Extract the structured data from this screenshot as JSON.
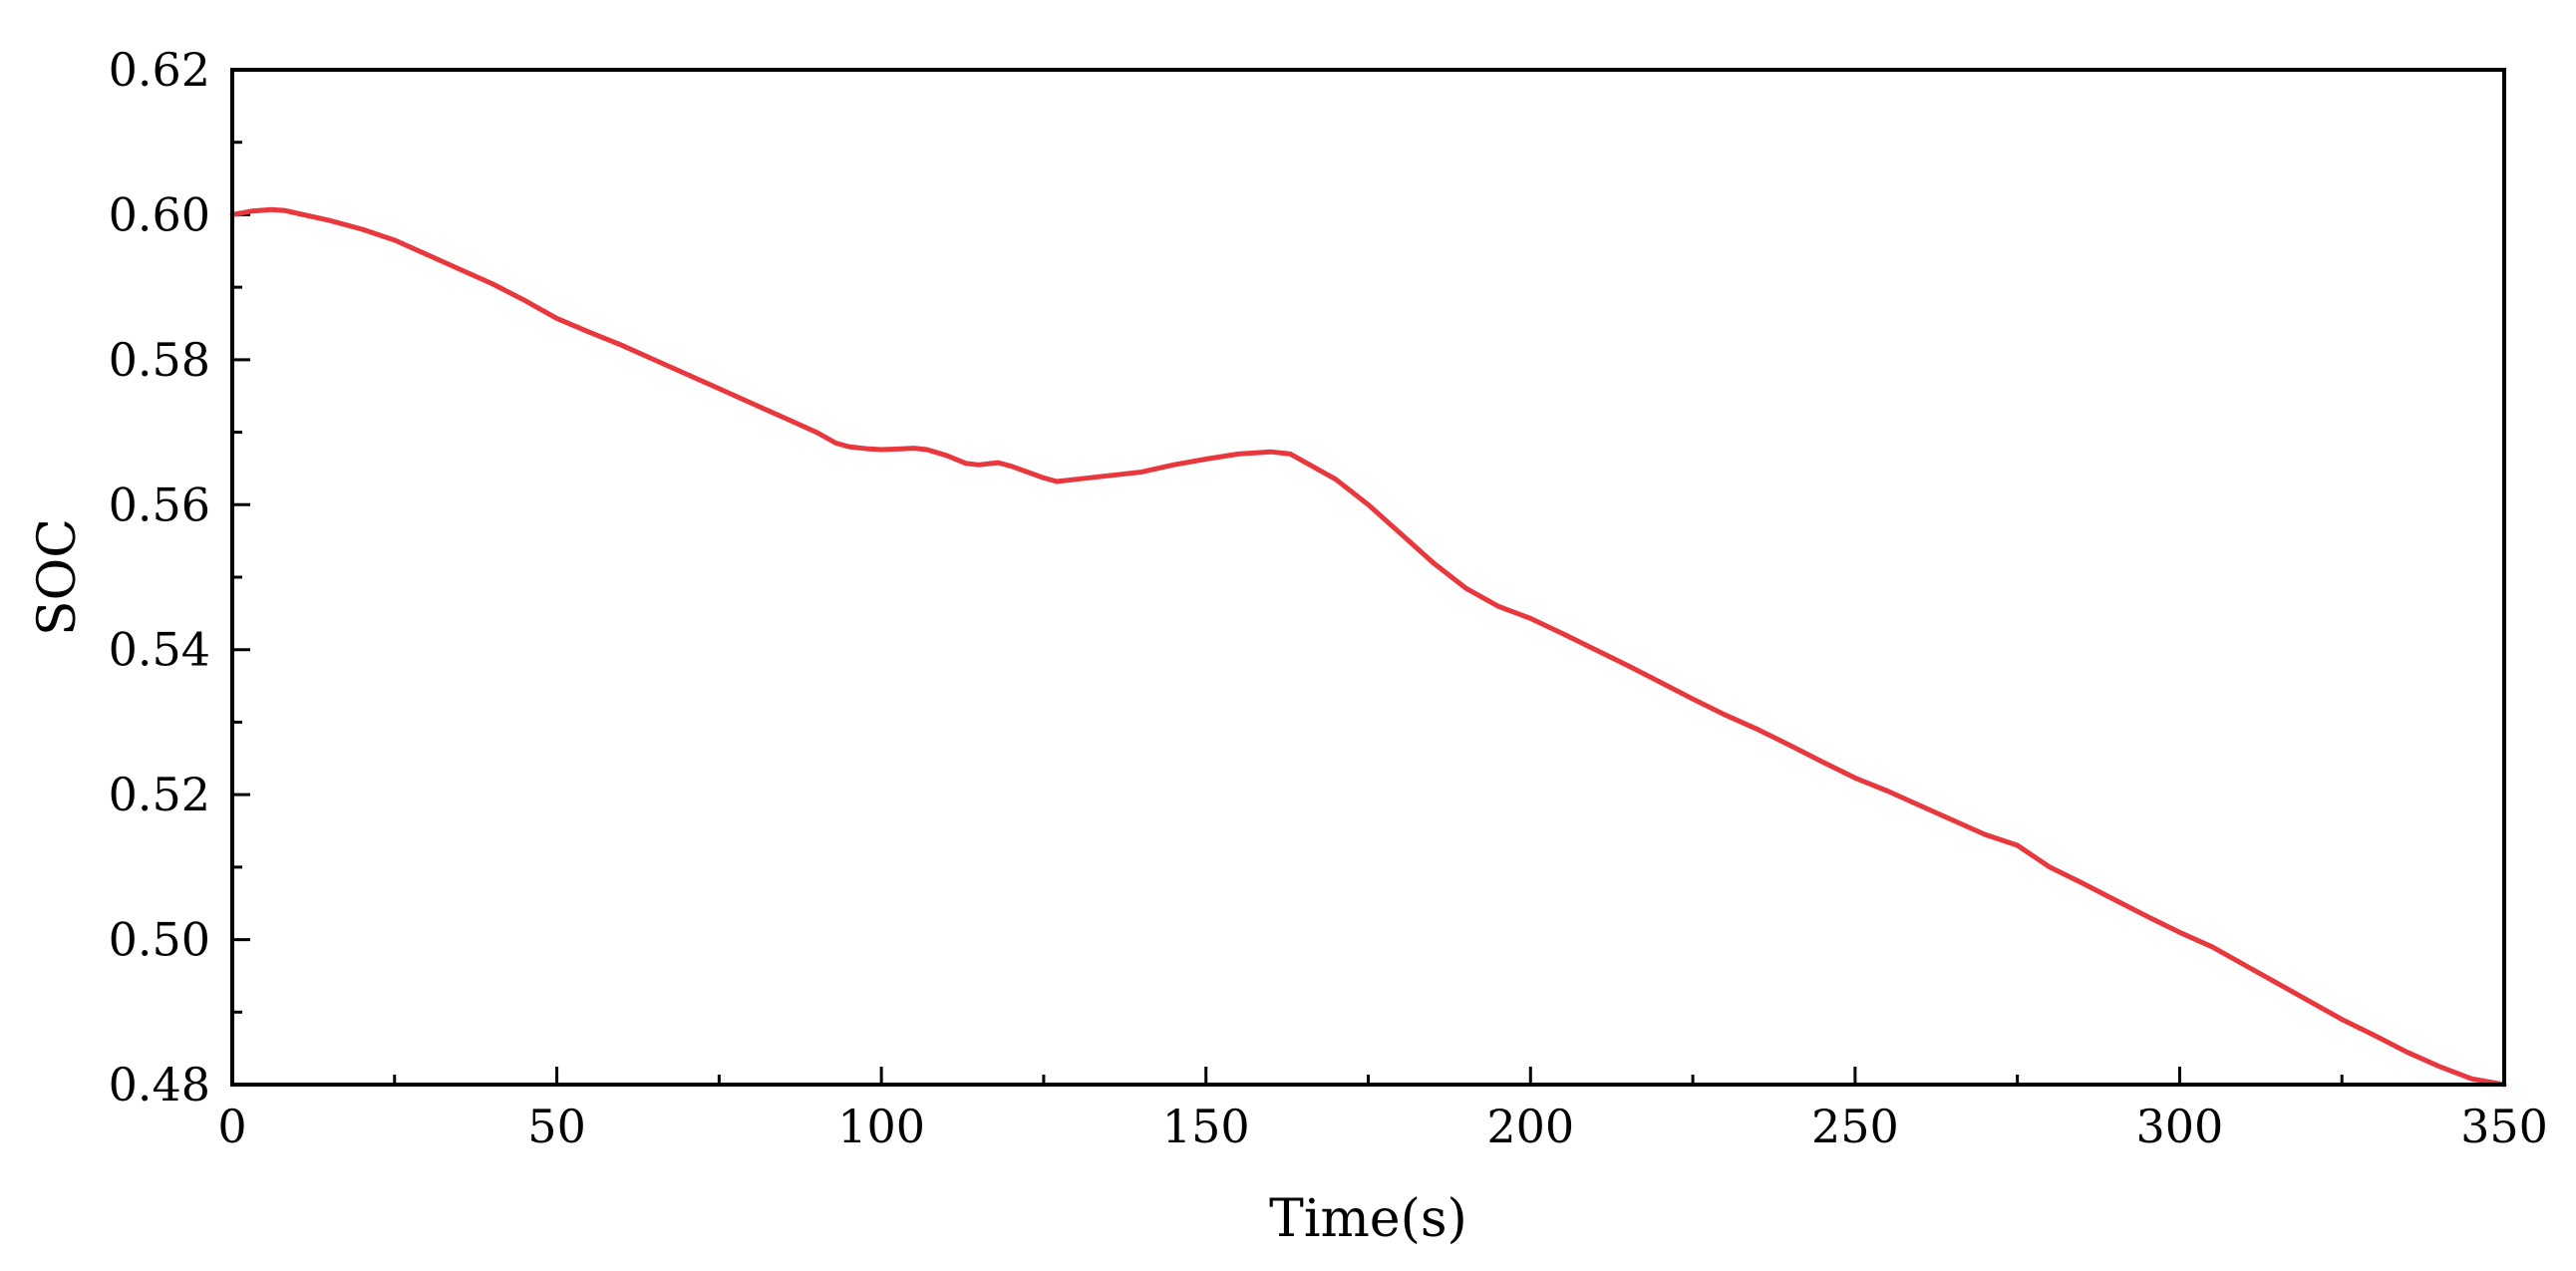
{
  "chart_data": {
    "type": "line",
    "title": "",
    "xlabel": "Time(s)",
    "ylabel": "SOC",
    "xlim": [
      0,
      350
    ],
    "ylim": [
      0.48,
      0.62
    ],
    "x_ticks": [
      0,
      50,
      100,
      150,
      200,
      250,
      300,
      350
    ],
    "x_tick_labels": [
      "0",
      "50",
      "100",
      "150",
      "200",
      "250",
      "300",
      "350"
    ],
    "x_minor_ticks": [
      25,
      75,
      125,
      175,
      225,
      275,
      325
    ],
    "y_ticks": [
      0.48,
      0.5,
      0.52,
      0.54,
      0.56,
      0.58,
      0.6,
      0.62
    ],
    "y_tick_labels": [
      "0.48",
      "0.50",
      "0.52",
      "0.54",
      "0.56",
      "0.58",
      "0.60",
      "0.62"
    ],
    "y_minor_ticks": [
      0.49,
      0.51,
      0.53,
      0.55,
      0.57,
      0.59,
      0.61
    ],
    "grid": false,
    "legend": "none",
    "colors": {
      "series": "#e8383d",
      "axis": "#000000",
      "background": "#ffffff"
    },
    "series": [
      {
        "x": [
          0,
          3,
          6,
          8,
          10,
          15,
          20,
          25,
          30,
          35,
          40,
          45,
          50,
          55,
          60,
          65,
          70,
          75,
          80,
          85,
          90,
          93,
          95,
          98,
          100,
          103,
          105,
          107,
          110,
          113,
          115,
          118,
          120,
          125,
          127,
          130,
          135,
          140,
          145,
          150,
          155,
          160,
          163,
          165,
          170,
          175,
          180,
          185,
          190,
          195,
          200,
          205,
          210,
          215,
          220,
          225,
          230,
          235,
          240,
          245,
          250,
          255,
          260,
          265,
          270,
          275,
          280,
          285,
          290,
          295,
          300,
          305,
          310,
          315,
          320,
          325,
          330,
          335,
          340,
          345,
          350
        ],
        "y": [
          0.6,
          0.6005,
          0.6007,
          0.6006,
          0.6002,
          0.5992,
          0.598,
          0.5965,
          0.5945,
          0.5925,
          0.5905,
          0.5882,
          0.5857,
          0.5838,
          0.582,
          0.58,
          0.578,
          0.576,
          0.574,
          0.572,
          0.57,
          0.5685,
          0.568,
          0.5677,
          0.5676,
          0.5677,
          0.5678,
          0.5676,
          0.5668,
          0.5657,
          0.5655,
          0.5658,
          0.5653,
          0.5637,
          0.5632,
          0.5635,
          0.564,
          0.5645,
          0.5655,
          0.5663,
          0.567,
          0.5673,
          0.567,
          0.566,
          0.5635,
          0.56,
          0.556,
          0.552,
          0.5485,
          0.546,
          0.5443,
          0.5422,
          0.54,
          0.5378,
          0.5355,
          0.5332,
          0.531,
          0.529,
          0.5268,
          0.5245,
          0.5223,
          0.5205,
          0.5185,
          0.5165,
          0.5145,
          0.513,
          0.51,
          0.5078,
          0.5055,
          0.5032,
          0.501,
          0.499,
          0.4965,
          0.494,
          0.4915,
          0.489,
          0.4868,
          0.4845,
          0.4825,
          0.4808,
          0.48
        ]
      }
    ]
  }
}
